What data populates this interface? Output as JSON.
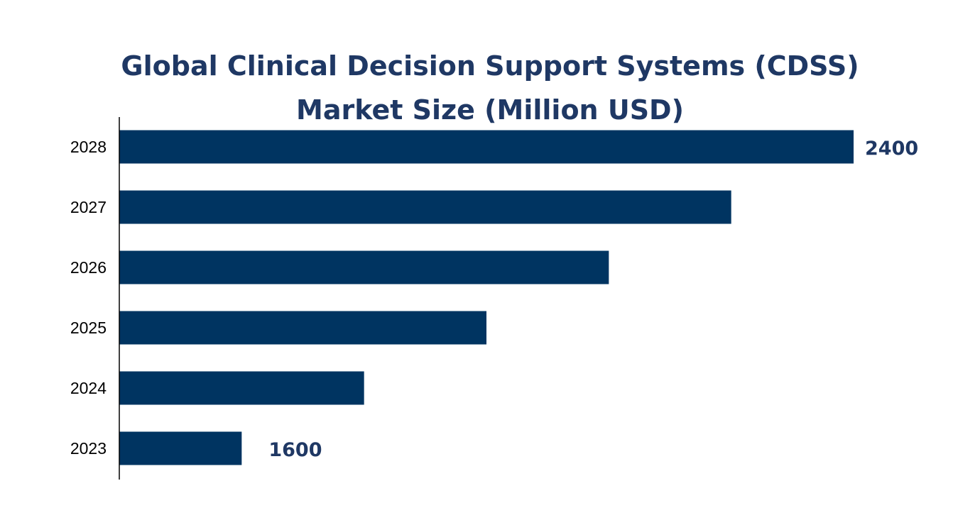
{
  "chart_data": {
    "type": "bar",
    "orientation": "horizontal",
    "title_lines": [
      "Global Clinical Decision Support Systems (CDSS)",
      "Market Size (Million USD)"
    ],
    "categories": [
      "2023",
      "2024",
      "2025",
      "2026",
      "2027",
      "2028"
    ],
    "values": [
      1600,
      1760,
      1920,
      2080,
      2240,
      2400
    ],
    "data_labels": {
      "2023": "1600",
      "2028": "2400"
    },
    "xlim": [
      1440,
      2400
    ],
    "grid": false,
    "legend": "none",
    "colors": {
      "bar": "#003461",
      "title": "#1f3864",
      "data_label": "#1f3864"
    }
  }
}
